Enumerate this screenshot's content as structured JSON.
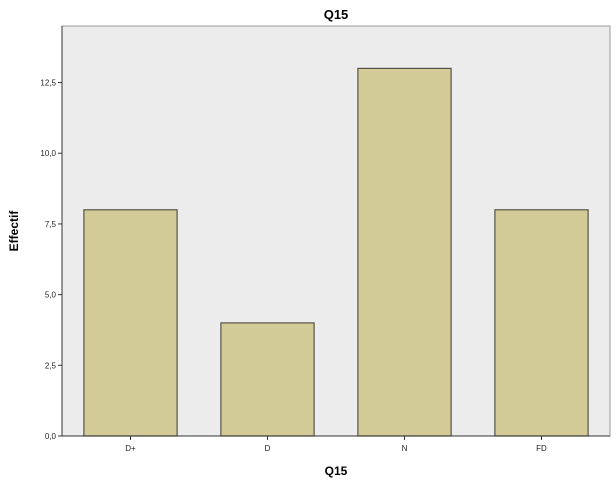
{
  "chart_data": {
    "type": "bar",
    "title": "Q15",
    "xlabel": "Q15",
    "ylabel": "Effectif",
    "categories": [
      "D+",
      "D",
      "N",
      "FD"
    ],
    "values": [
      8,
      4,
      13,
      8
    ],
    "ylim": [
      0,
      14.5
    ],
    "yticks": [
      0,
      2.5,
      5,
      7.5,
      10,
      12.5
    ],
    "ytick_labels": [
      "0,0",
      "2,5",
      "5,0",
      "7,5",
      "10,0",
      "12,5"
    ],
    "grid": false,
    "legend": "none",
    "colors": {
      "bar_fill": "#d2cb98",
      "bar_stroke": "#555346",
      "plot_background": "#ececec",
      "axis": "#333333"
    }
  }
}
